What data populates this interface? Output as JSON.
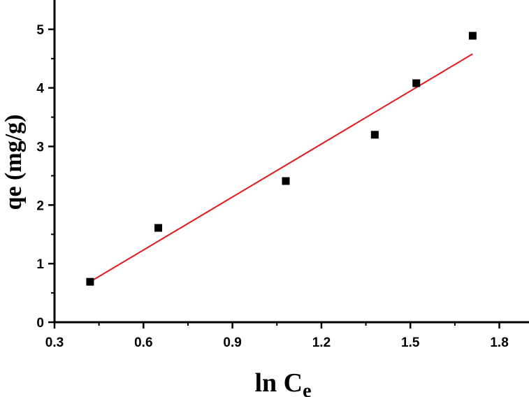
{
  "chart_data": {
    "type": "scatter",
    "title": "",
    "xlabel": "ln C",
    "xlabel_subscript": "e",
    "ylabel": "qe (mg/g)",
    "xlim": [
      0.3,
      1.9
    ],
    "ylim": [
      0,
      5.5
    ],
    "x_ticks": [
      "0.3",
      "0.6",
      "0.9",
      "1.2",
      "1.5",
      "1.8"
    ],
    "y_ticks": [
      "0",
      "1",
      "2",
      "3",
      "4",
      "5"
    ],
    "grid": false,
    "legend": "none",
    "series": [
      {
        "type": "scatter",
        "marker": "square",
        "color": "#000000",
        "x": [
          0.42,
          0.65,
          1.08,
          1.38,
          1.52,
          1.71
        ],
        "y": [
          0.69,
          1.61,
          2.41,
          3.2,
          4.08,
          4.89
        ]
      },
      {
        "type": "line",
        "color": "#e31a1c",
        "x": [
          0.42,
          1.71
        ],
        "y": [
          0.69,
          4.58
        ]
      }
    ]
  }
}
